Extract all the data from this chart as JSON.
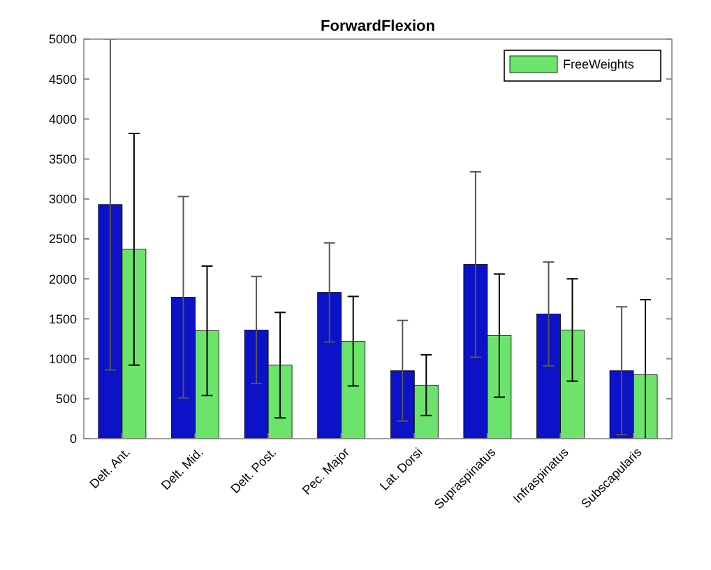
{
  "chart_data": {
    "type": "bar",
    "title": "ForwardFlexion",
    "categories": [
      "Delt. Ant.",
      "Delt. Mid.",
      "Delt. Post.",
      "Pec. Major",
      "Lat. Dorsi",
      "Supraspinatus",
      "Infraspinatus",
      "Subscapularis"
    ],
    "series": [
      {
        "color": "#0c12c8",
        "values": [
          2930,
          1770,
          1360,
          1830,
          850,
          2180,
          1560,
          850
        ],
        "errors": [
          2070,
          1260,
          670,
          620,
          630,
          1160,
          650,
          800
        ]
      },
      {
        "name": "FreeWeights",
        "color": "#6ce46c",
        "values": [
          2370,
          1350,
          920,
          1220,
          670,
          1290,
          1360,
          800
        ],
        "errors": [
          1450,
          810,
          660,
          560,
          380,
          770,
          640,
          940
        ]
      }
    ],
    "ylim": [
      0,
      5000
    ],
    "yticks": [
      0,
      500,
      1000,
      1500,
      2000,
      2500,
      3000,
      3500,
      4000,
      4500,
      5000
    ],
    "grid": false,
    "legend": "top right"
  }
}
